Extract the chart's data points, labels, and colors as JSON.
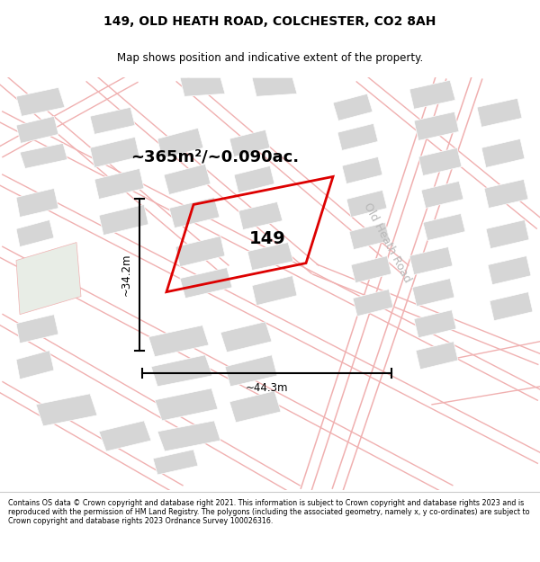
{
  "title": "149, OLD HEATH ROAD, COLCHESTER, CO2 8AH",
  "subtitle": "Map shows position and indicative extent of the property.",
  "footer": "Contains OS data © Crown copyright and database right 2021. This information is subject to Crown copyright and database rights 2023 and is reproduced with the permission of HM Land Registry. The polygons (including the associated geometry, namely x, y co-ordinates) are subject to Crown copyright and database rights 2023 Ordnance Survey 100026316.",
  "area_label": "~365m²/~0.090ac.",
  "property_number": "149",
  "width_label": "~44.3m",
  "height_label": "~34.2m",
  "road_label": "Old Heath Road",
  "map_bg": "#f7f5f5",
  "building_color": "#d6d6d6",
  "road_line_color": "#f0b0b0",
  "property_outline_color": "#dd0000",
  "green_area": "#e8ede6",
  "title_fontsize": 10,
  "subtitle_fontsize": 8.5,
  "area_fontsize": 13,
  "prop_num_fontsize": 14,
  "dim_fontsize": 8.5,
  "road_label_fontsize": 9,
  "footer_fontsize": 5.8
}
